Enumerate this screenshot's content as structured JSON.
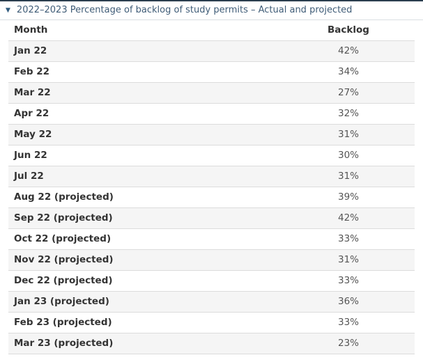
{
  "accordion": {
    "marker": "▼",
    "title": "2022–2023 Percentage of backlog of study permits – Actual and projected",
    "expanded": true
  },
  "table": {
    "columns": [
      "Month",
      "Backlog"
    ],
    "rows": [
      {
        "month": "Jan 22",
        "backlog": "42%"
      },
      {
        "month": "Feb 22",
        "backlog": "34%"
      },
      {
        "month": "Mar 22",
        "backlog": "27%"
      },
      {
        "month": "Apr 22",
        "backlog": "32%"
      },
      {
        "month": "May 22",
        "backlog": "31%"
      },
      {
        "month": "Jun 22",
        "backlog": "30%"
      },
      {
        "month": "Jul 22",
        "backlog": "31%"
      },
      {
        "month": "Aug 22 (projected)",
        "backlog": "39%"
      },
      {
        "month": "Sep 22 (projected)",
        "backlog": "42%"
      },
      {
        "month": "Oct 22 (projected)",
        "backlog": "33%"
      },
      {
        "month": "Nov 22 (projected)",
        "backlog": "31%"
      },
      {
        "month": "Dec 22 (projected)",
        "backlog": "33%"
      },
      {
        "month": "Jan 23 (projected)",
        "backlog": "36%"
      },
      {
        "month": "Feb 23 (projected)",
        "backlog": "33%"
      },
      {
        "month": "Mar 23 (projected)",
        "backlog": "23%"
      }
    ]
  },
  "colors": {
    "top_border": "#2b3e4f",
    "title_text": "#3f5c77",
    "marker": "#2f5a7d",
    "title_underline": "#d9dee3",
    "row_border": "#dcdcdc",
    "row_stripe": "#f5f5f5"
  }
}
